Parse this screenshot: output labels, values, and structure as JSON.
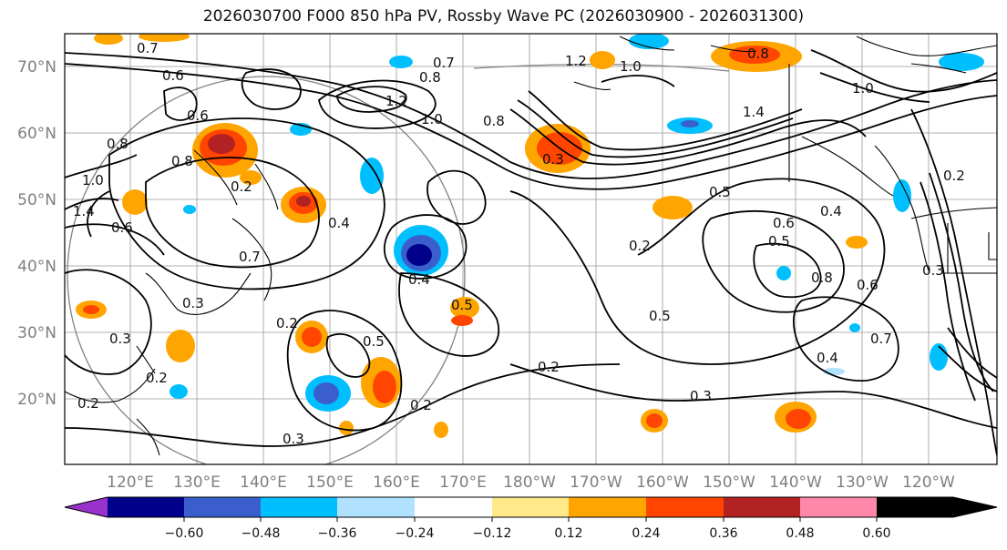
{
  "title": "2026030700 F000 850 hPa PV, Rossby Wave PC (2026030900 - 2026031300)",
  "lat_labels": [
    "70°N",
    "60°N",
    "50°N",
    "40°N",
    "30°N",
    "20°N"
  ],
  "lon_labels": [
    "120°E",
    "130°E",
    "140°E",
    "150°E",
    "160°E",
    "170°E",
    "180°W",
    "170°W",
    "160°W",
    "150°W",
    "140°W",
    "130°W",
    "120°W"
  ],
  "colorbar": {
    "ticks": [
      "−0.60",
      "−0.48",
      "−0.36",
      "−0.24",
      "−0.12",
      "0.12",
      "0.24",
      "0.36",
      "0.48",
      "0.60"
    ],
    "colors": [
      "#9932cc",
      "#00008b",
      "#3a5fcd",
      "#00bfff",
      "#b0e2ff",
      "#ffffff",
      "#ffe98a",
      "#ffa500",
      "#ff4500",
      "#b22222",
      "#ff88aa"
    ]
  },
  "contour_labels": [
    "0.7",
    "0.6",
    "0.6",
    "1.0",
    "0.8",
    "1.4",
    "0.6",
    "0.8",
    "1.2",
    "1.0",
    "0.8",
    "0.2",
    "0.8",
    "0.4",
    "0.7",
    "0.3",
    "0.2",
    "0.2",
    "0.3",
    "0.5",
    "0.4",
    "0.5",
    "0.2",
    "0.7",
    "1.2",
    "1.0",
    "1.4",
    "0.8",
    "1.0",
    "0.3",
    "0.5",
    "0.2",
    "0.5",
    "0.3",
    "0.2",
    "0.6",
    "0.4",
    "0.8",
    "0.5",
    "0.6",
    "0.4",
    "0.7",
    "0.2",
    "0.3",
    "0.2",
    "0.3"
  ]
}
